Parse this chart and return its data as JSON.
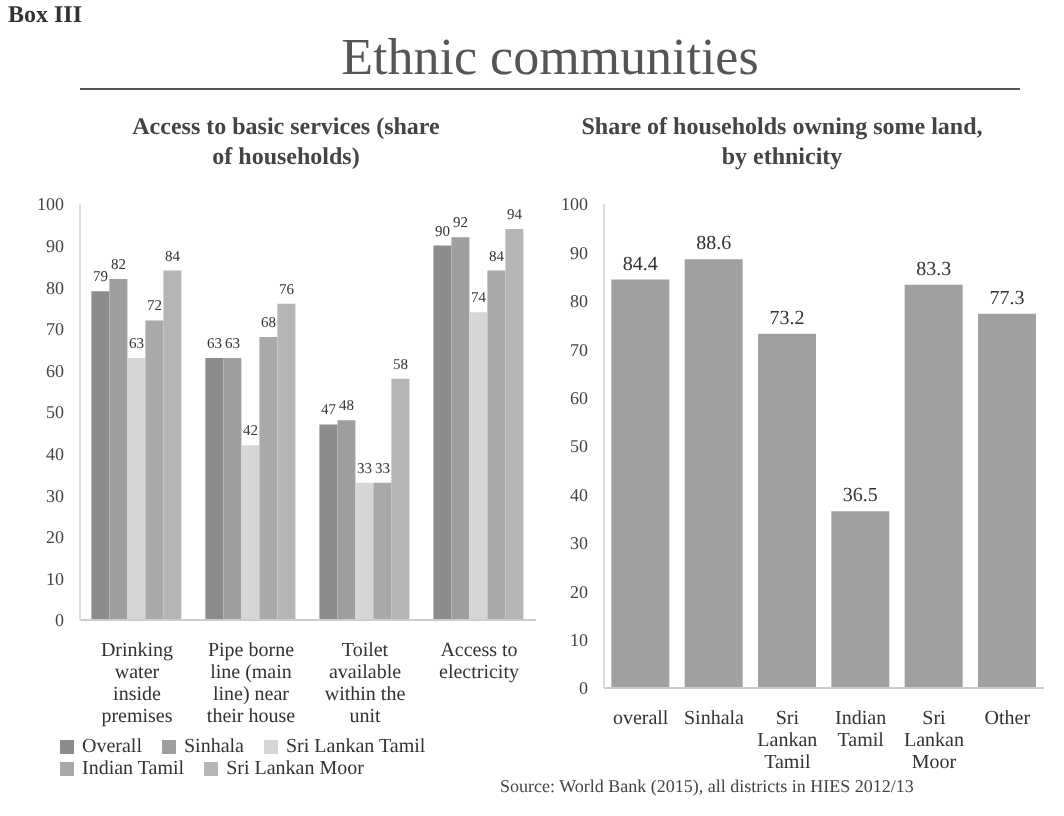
{
  "chart_data": [
    {
      "type": "bar",
      "title": "Access to basic services (share of households)",
      "annotations": [
        "Box III",
        "Ethnic communities"
      ],
      "categories": [
        "Drinking water inside premises",
        "Pipe borne line (main line) near their house",
        "Toilet available within the unit",
        "Access to electricity"
      ],
      "series": [
        {
          "name": "Overall",
          "color": "#8c8c8c",
          "values": [
            79,
            63,
            47,
            90
          ]
        },
        {
          "name": "Sinhala",
          "color": "#9e9e9e",
          "values": [
            82,
            63,
            48,
            92
          ]
        },
        {
          "name": "Sri Lankan Tamil",
          "color": "#d6d6d6",
          "values": [
            63,
            42,
            33,
            74
          ]
        },
        {
          "name": "Indian Tamil",
          "color": "#a9a9a9",
          "values": [
            72,
            68,
            33,
            84
          ]
        },
        {
          "name": "Sri Lankan Moor",
          "color": "#b5b5b5",
          "values": [
            84,
            76,
            58,
            94
          ]
        }
      ],
      "ylim": [
        0,
        100
      ],
      "yticks": [
        0,
        10,
        20,
        30,
        40,
        50,
        60,
        70,
        80,
        90,
        100
      ],
      "data_labels": true,
      "legend": "bottom",
      "grid": false
    },
    {
      "type": "bar",
      "title": "Share of households owning some land, by ethnicity",
      "annotations": [
        "Source: World Bank (2015), all districts in HIES 2012/13"
      ],
      "categories": [
        "overall",
        "Sinhala",
        "Sri Lankan Tamil",
        "Indian Tamil",
        "Sri Lankan Moor",
        "Other"
      ],
      "values": [
        84.4,
        88.6,
        73.2,
        36.5,
        83.3,
        77.3
      ],
      "color": "#a0a0a0",
      "ylim": [
        0,
        100
      ],
      "yticks": [
        0,
        10,
        20,
        30,
        40,
        50,
        60,
        70,
        80,
        90,
        100
      ],
      "data_labels": true,
      "grid": false
    }
  ]
}
